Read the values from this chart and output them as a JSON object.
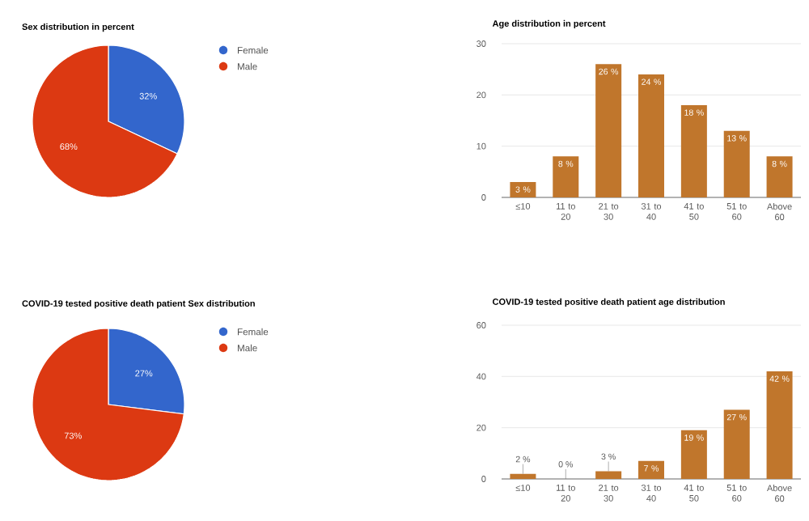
{
  "chart_data": [
    {
      "type": "pie",
      "title": "Sex distribution in percent",
      "categories": [
        "Female",
        "Male"
      ],
      "values": [
        32,
        68
      ],
      "colors": [
        "#3366cc",
        "#dc3912"
      ],
      "value_labels": [
        "32%",
        "68%"
      ],
      "legend": "top right"
    },
    {
      "type": "bar",
      "title": "Age distribution in percent",
      "categories": [
        "≤10",
        "11 to 20",
        "21 to 30",
        "31 to 40",
        "41 to 50",
        "51 to 60",
        "Above 60"
      ],
      "values": [
        3,
        8,
        26,
        24,
        18,
        13,
        8
      ],
      "color": "#c0762c",
      "ylim": [
        0,
        30
      ],
      "yticks": [
        0,
        10,
        20,
        30
      ],
      "grid": "y",
      "value_labels": [
        "3 %",
        "8 %",
        "26 %",
        "24 %",
        "18 %",
        "13 %",
        "8 %"
      ]
    },
    {
      "type": "pie",
      "title": "COVID-19 tested positive death patient Sex distribution",
      "categories": [
        "Female",
        "Male"
      ],
      "values": [
        27,
        73
      ],
      "colors": [
        "#3366cc",
        "#dc3912"
      ],
      "value_labels": [
        "27%",
        "73%"
      ],
      "legend": "top right"
    },
    {
      "type": "bar",
      "title": "COVID-19 tested positive death patient age distribution",
      "categories": [
        "≤10",
        "11 to 20",
        "21 to 30",
        "31 to 40",
        "41 to 50",
        "51 to 60",
        "Above 60"
      ],
      "values": [
        2,
        0,
        3,
        7,
        19,
        27,
        42
      ],
      "color": "#c0762c",
      "ylim": [
        0,
        60
      ],
      "yticks": [
        0,
        20,
        40,
        60
      ],
      "grid": "y",
      "value_labels": [
        "2 %",
        "0 %",
        "3 %",
        "7 %",
        "19 %",
        "27 %",
        "42 %"
      ]
    }
  ]
}
